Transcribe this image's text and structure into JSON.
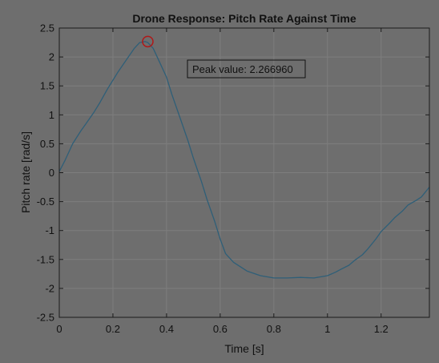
{
  "colors": {
    "figure_background": "#6e6e6e",
    "axes_background": "#6e6e6e",
    "axis_color": "#1a1a1a",
    "grid_color": "#7e7e7e",
    "text_color": "#111111",
    "series_color": "#2f5f78",
    "marker_color": "#b01818",
    "annotation_border": "#111111"
  },
  "chart_data": {
    "type": "line",
    "title": "Drone Response: Pitch Rate Against Time",
    "xlabel": "Time [s]",
    "ylabel": "Pitch rate [rad/s]",
    "xlim": [
      0,
      1.38
    ],
    "ylim": [
      -2.5,
      2.5
    ],
    "grid": true,
    "xticks": [
      0,
      0.2,
      0.4,
      0.6,
      0.8,
      1,
      1.2
    ],
    "xtick_labels": [
      "0",
      "0.2",
      "0.4",
      "0.6",
      "0.8",
      "1",
      "1.2"
    ],
    "yticks": [
      2.5,
      2,
      1.5,
      1,
      0.5,
      0,
      -0.5,
      -1,
      -1.5,
      -2,
      -2.5
    ],
    "ytick_labels": [
      "2.5",
      "2",
      "1.5",
      "1",
      "0.5",
      "0",
      "-0.5",
      "-1",
      "-1.5",
      "-2",
      "-2.5"
    ],
    "series": [
      {
        "x": [
          0,
          0.02,
          0.05,
          0.08,
          0.1,
          0.13,
          0.15,
          0.18,
          0.2,
          0.22,
          0.25,
          0.28,
          0.3,
          0.32,
          0.33,
          0.35,
          0.37,
          0.4,
          0.42,
          0.45,
          0.48,
          0.5,
          0.53,
          0.55,
          0.58,
          0.6,
          0.62,
          0.65,
          0.7,
          0.75,
          0.8,
          0.85,
          0.9,
          0.95,
          1.0,
          1.03,
          1.05,
          1.08,
          1.1,
          1.13,
          1.15,
          1.18,
          1.2,
          1.23,
          1.25,
          1.28,
          1.3,
          1.33,
          1.35,
          1.38
        ],
        "y": [
          0.02,
          0.2,
          0.5,
          0.72,
          0.85,
          1.05,
          1.2,
          1.45,
          1.6,
          1.75,
          1.95,
          2.15,
          2.25,
          2.267,
          2.25,
          2.15,
          1.95,
          1.65,
          1.35,
          0.95,
          0.55,
          0.25,
          -0.15,
          -0.45,
          -0.85,
          -1.15,
          -1.4,
          -1.55,
          -1.7,
          -1.78,
          -1.82,
          -1.82,
          -1.81,
          -1.82,
          -1.78,
          -1.72,
          -1.67,
          -1.6,
          -1.52,
          -1.42,
          -1.32,
          -1.15,
          -1.02,
          -0.88,
          -0.78,
          -0.66,
          -0.56,
          -0.48,
          -0.42,
          -0.25
        ]
      }
    ],
    "peak": {
      "x": 0.33,
      "y": 2.26696
    },
    "annotation": "Peak value: 2.266960"
  }
}
